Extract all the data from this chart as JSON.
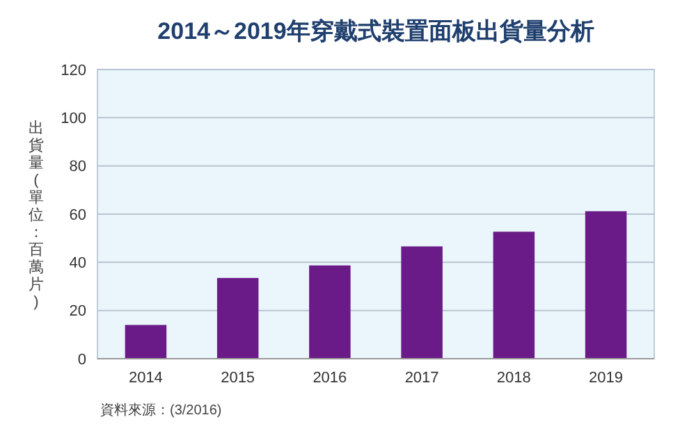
{
  "chart_data": {
    "type": "bar",
    "title": "2014～2019年穿戴式裝置面板出貨量分析",
    "ylabel": "出貨量(單位：百萬片)",
    "categories": [
      "2014",
      "2015",
      "2016",
      "2017",
      "2018",
      "2019"
    ],
    "values": [
      14,
      33.5,
      38.7,
      46.6,
      52.7,
      61.2
    ],
    "color": "#6a1b87",
    "ylim": [
      0,
      120
    ],
    "yticks": [
      0,
      20,
      40,
      60,
      80,
      100,
      120
    ],
    "grid": "y",
    "annotations": [
      "資料來源：(3/2016)"
    ]
  }
}
